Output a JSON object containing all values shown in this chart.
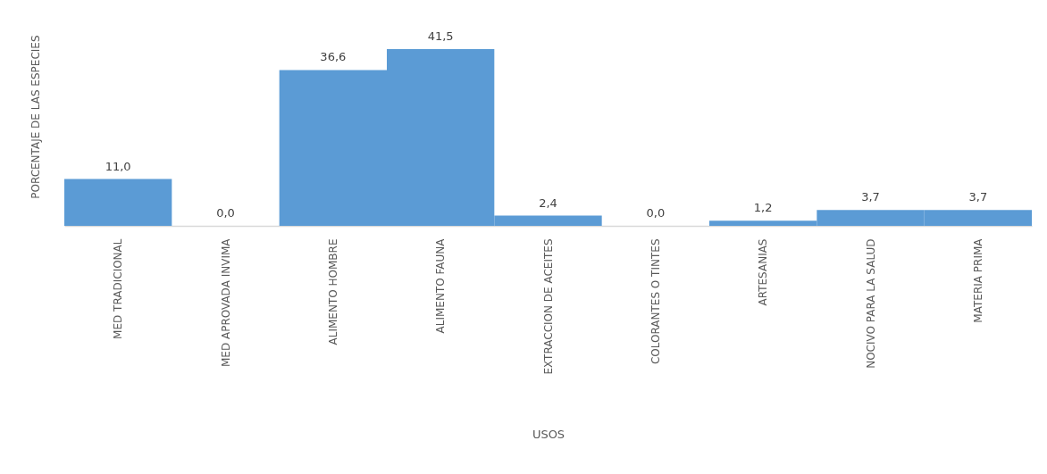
{
  "chart_data": {
    "type": "bar",
    "xlabel": "USOS",
    "ylabel": "PORCENTAJE DE LAS ESPECIES",
    "categories": [
      "MED TRADICIONAL",
      "MED APROVADA INVIMA",
      "ALIMENTO HOMBRE",
      "ALIMENTO  FAUNA",
      "EXTRACCION DE ACEITES",
      "COLORANTES O TINTES",
      "ARTESANIAS",
      "NOCIVO PARA LA SALUD",
      "MATERIA PRIMA"
    ],
    "values": [
      11.0,
      0.0,
      36.6,
      41.5,
      2.4,
      0.0,
      1.2,
      3.7,
      3.7
    ],
    "value_labels": [
      "11,0",
      "0,0",
      "36,6",
      "41,5",
      "2,4",
      "0,0",
      "1,2",
      "3,7",
      "3,7"
    ],
    "color": "#5b9bd5",
    "tick_labels": "x"
  }
}
